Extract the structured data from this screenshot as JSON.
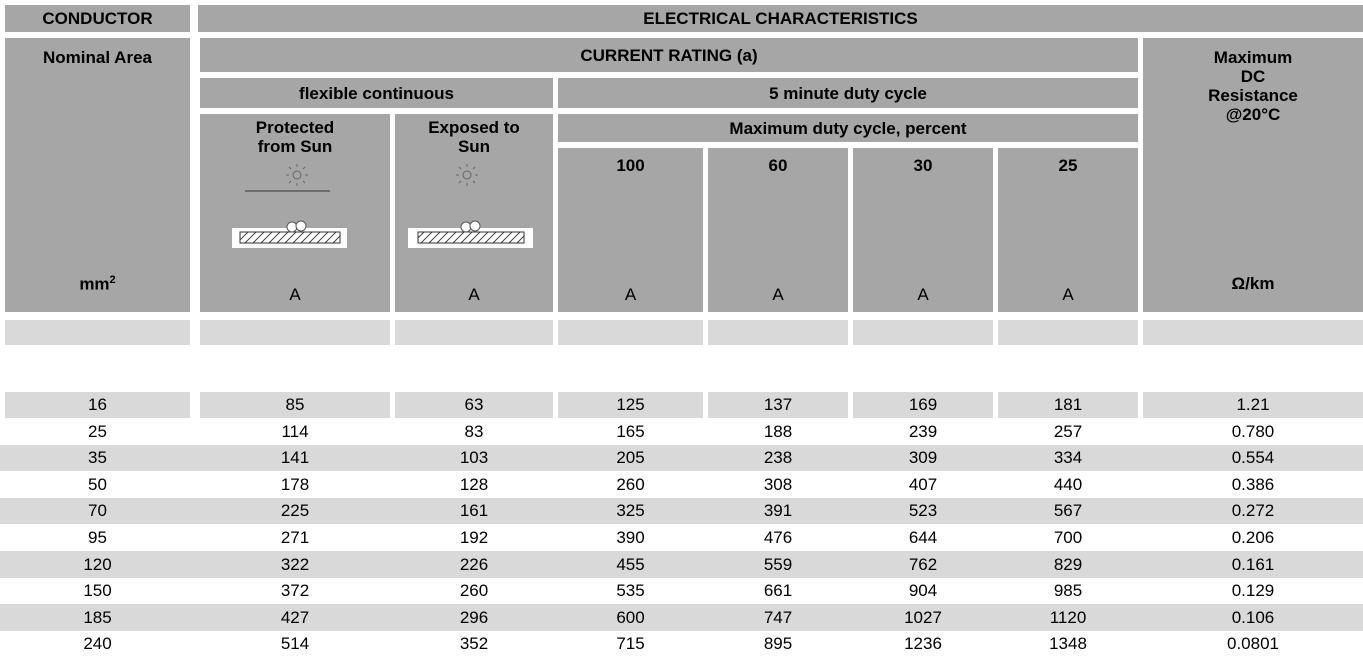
{
  "header": {
    "conductor": "CONDUCTOR",
    "electrical": "ELECTRICAL CHARACTERISTICS",
    "nominal_area": "Nominal Area",
    "current_rating": "CURRENT RATING (a)",
    "max_dc": [
      "Maximum",
      "DC",
      "Resistance",
      "@20°C"
    ],
    "flexible": "flexible continuous",
    "five_minute": "5 minute duty cycle",
    "protected": [
      "Protected",
      "from Sun"
    ],
    "exposed": [
      "Exposed to",
      "Sun"
    ],
    "duty_cycle": "Maximum duty cycle, percent",
    "percents": [
      "100",
      "60",
      "30",
      "25"
    ],
    "area_unit": {
      "base": "mm",
      "sup": "2"
    },
    "amp_units": [
      "A",
      "A",
      "A",
      "A",
      "A",
      "A"
    ],
    "resistance_unit": "Ω/km"
  },
  "table": {
    "rows": [
      [
        "16",
        "85",
        "63",
        "125",
        "137",
        "169",
        "181",
        "1.21"
      ],
      [
        "25",
        "114",
        "83",
        "165",
        "188",
        "239",
        "257",
        "0.780"
      ],
      [
        "35",
        "141",
        "103",
        "205",
        "238",
        "309",
        "334",
        "0.554"
      ],
      [
        "50",
        "178",
        "128",
        "260",
        "308",
        "407",
        "440",
        "0.386"
      ],
      [
        "70",
        "225",
        "161",
        "325",
        "391",
        "523",
        "567",
        "0.272"
      ],
      [
        "95",
        "271",
        "192",
        "390",
        "476",
        "644",
        "700",
        "0.206"
      ],
      [
        "120",
        "322",
        "226",
        "455",
        "559",
        "762",
        "829",
        "0.161"
      ],
      [
        "150",
        "372",
        "260",
        "535",
        "661",
        "904",
        "985",
        "0.129"
      ],
      [
        "185",
        "427",
        "296",
        "600",
        "747",
        "1027",
        "1120",
        "0.106"
      ],
      [
        "240",
        "514",
        "352",
        "715",
        "895",
        "1236",
        "1348",
        "0.0801"
      ]
    ]
  }
}
